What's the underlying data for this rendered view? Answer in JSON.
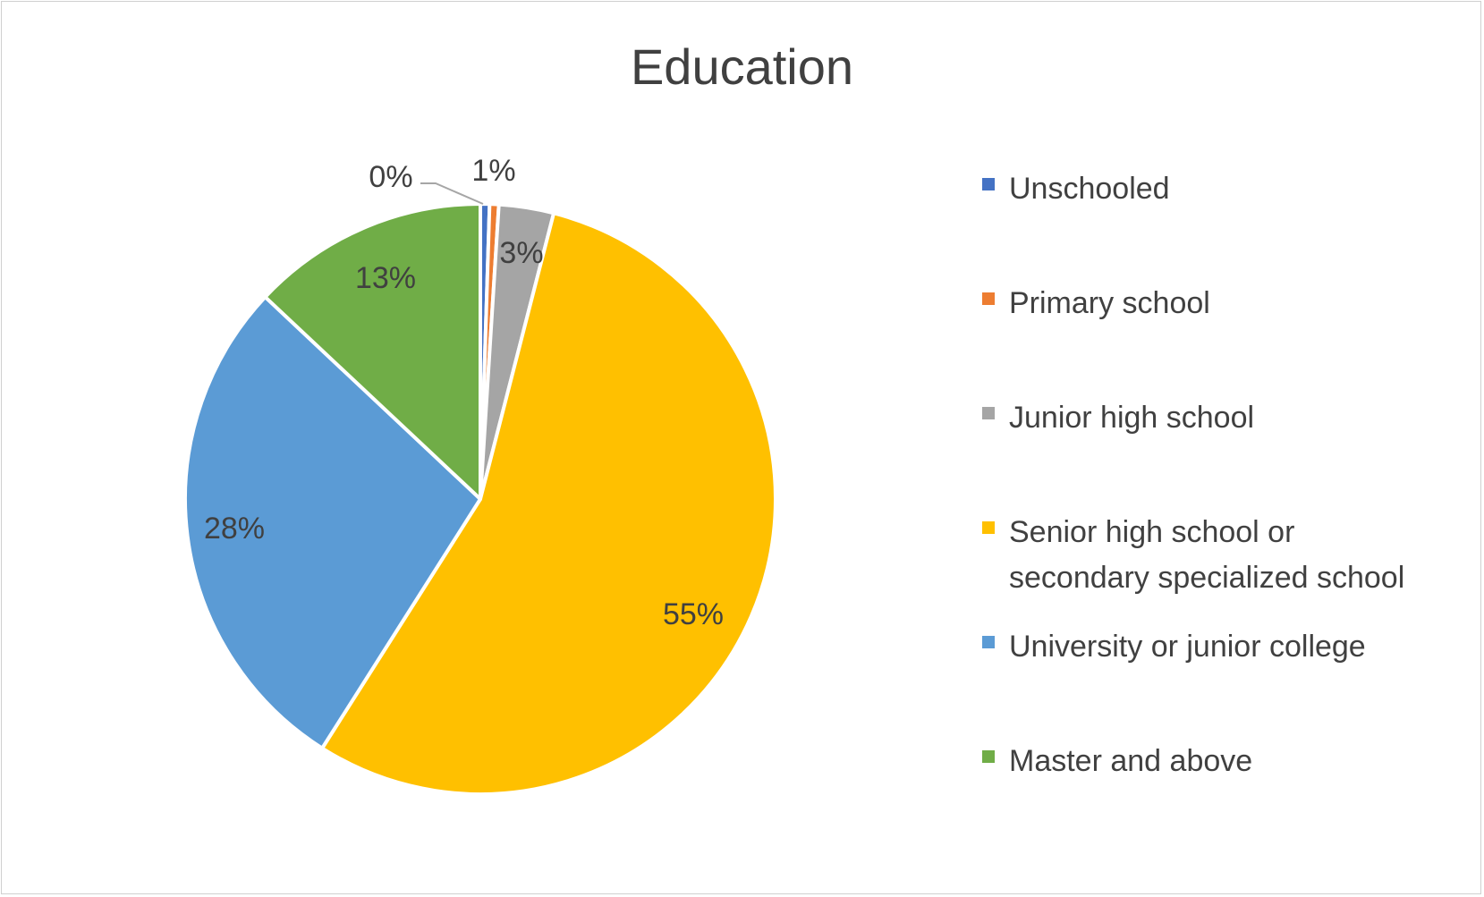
{
  "chart_data": {
    "type": "pie",
    "title": "Education",
    "categories": [
      "Unschooled",
      "Primary school",
      "Junior high school",
      "Senior high school or secondary specialized school",
      "University or junior college",
      "Master and above"
    ],
    "values": [
      0.5,
      0.5,
      3,
      55,
      28,
      13
    ],
    "data_labels": [
      "0%",
      "1%",
      "3%",
      "55%",
      "28%",
      "13%"
    ],
    "colors": [
      "#4472C4",
      "#ED7D31",
      "#A5A5A5",
      "#FFC000",
      "#5B9BD5",
      "#70AD47"
    ],
    "legend_position": "right"
  },
  "legend_lines": [
    [
      "Unschooled"
    ],
    [
      "Primary school"
    ],
    [
      "Junior high school"
    ],
    [
      "Senior high school or",
      "secondary specialized school"
    ],
    [
      "University or junior college"
    ],
    [
      "Master and above"
    ]
  ]
}
